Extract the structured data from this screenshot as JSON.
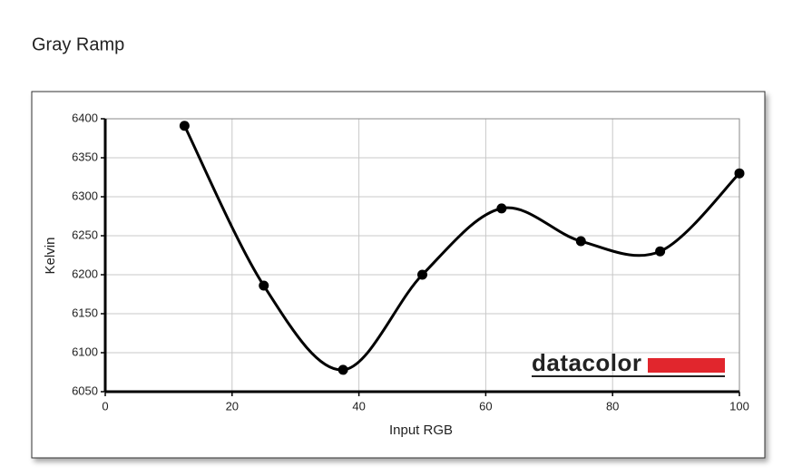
{
  "chart_data": {
    "type": "line",
    "title": "Gray Ramp",
    "x_label": "Input RGB",
    "y_label": "Kelvin",
    "watermark": "datacolor",
    "x": [
      12.5,
      25,
      37.5,
      50,
      62.5,
      75,
      87.5,
      100
    ],
    "series": [
      {
        "name": "Gray Ramp",
        "color": "#000000",
        "values": [
          6391,
          6186,
          6078,
          6200,
          6285,
          6243,
          6230,
          6330
        ]
      }
    ],
    "xlim": [
      0,
      100
    ],
    "xticks": [
      0,
      20,
      40,
      60,
      80,
      100
    ],
    "ylim": [
      6050,
      6400
    ],
    "yticks": [
      6050,
      6100,
      6150,
      6200,
      6250,
      6300,
      6350,
      6400
    ],
    "grid": true,
    "smooth": true
  }
}
